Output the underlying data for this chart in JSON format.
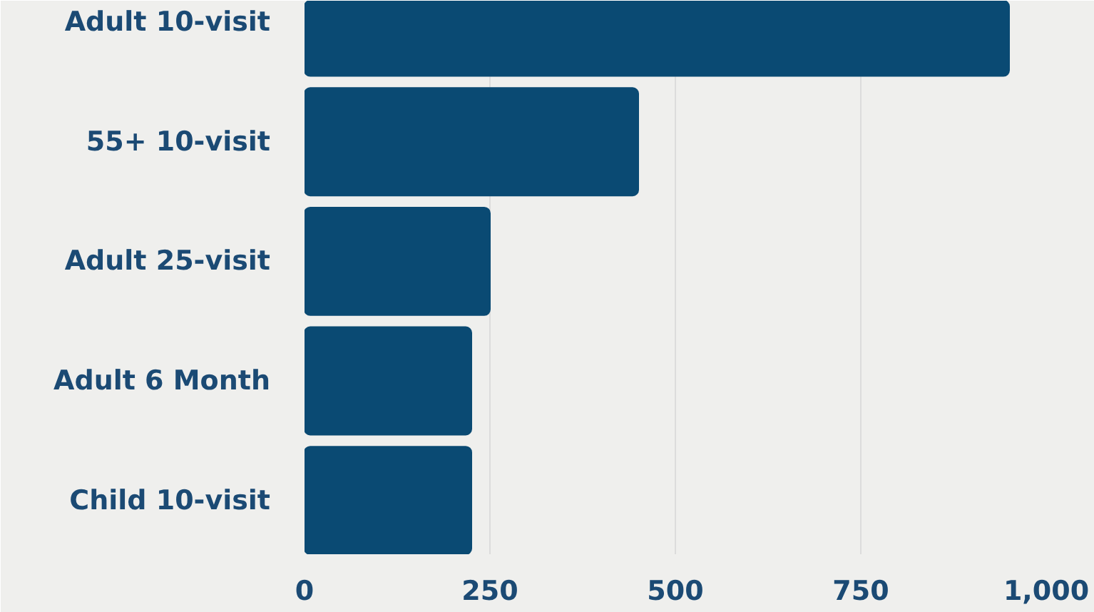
{
  "chart_data": {
    "type": "bar",
    "orientation": "horizontal",
    "categories": [
      "Adult 10-visit",
      "55+ 10-visit",
      "Adult 25-visit",
      "Adult 6 Month",
      "Child 10-visit"
    ],
    "values": [
      950,
      450,
      250,
      225,
      225
    ],
    "color": "#0a4a73",
    "xlim": [
      0,
      1000
    ],
    "xticks": [
      0,
      250,
      500,
      750,
      {
        "value": 1000,
        "label": "1,000"
      }
    ],
    "grid": "x"
  }
}
